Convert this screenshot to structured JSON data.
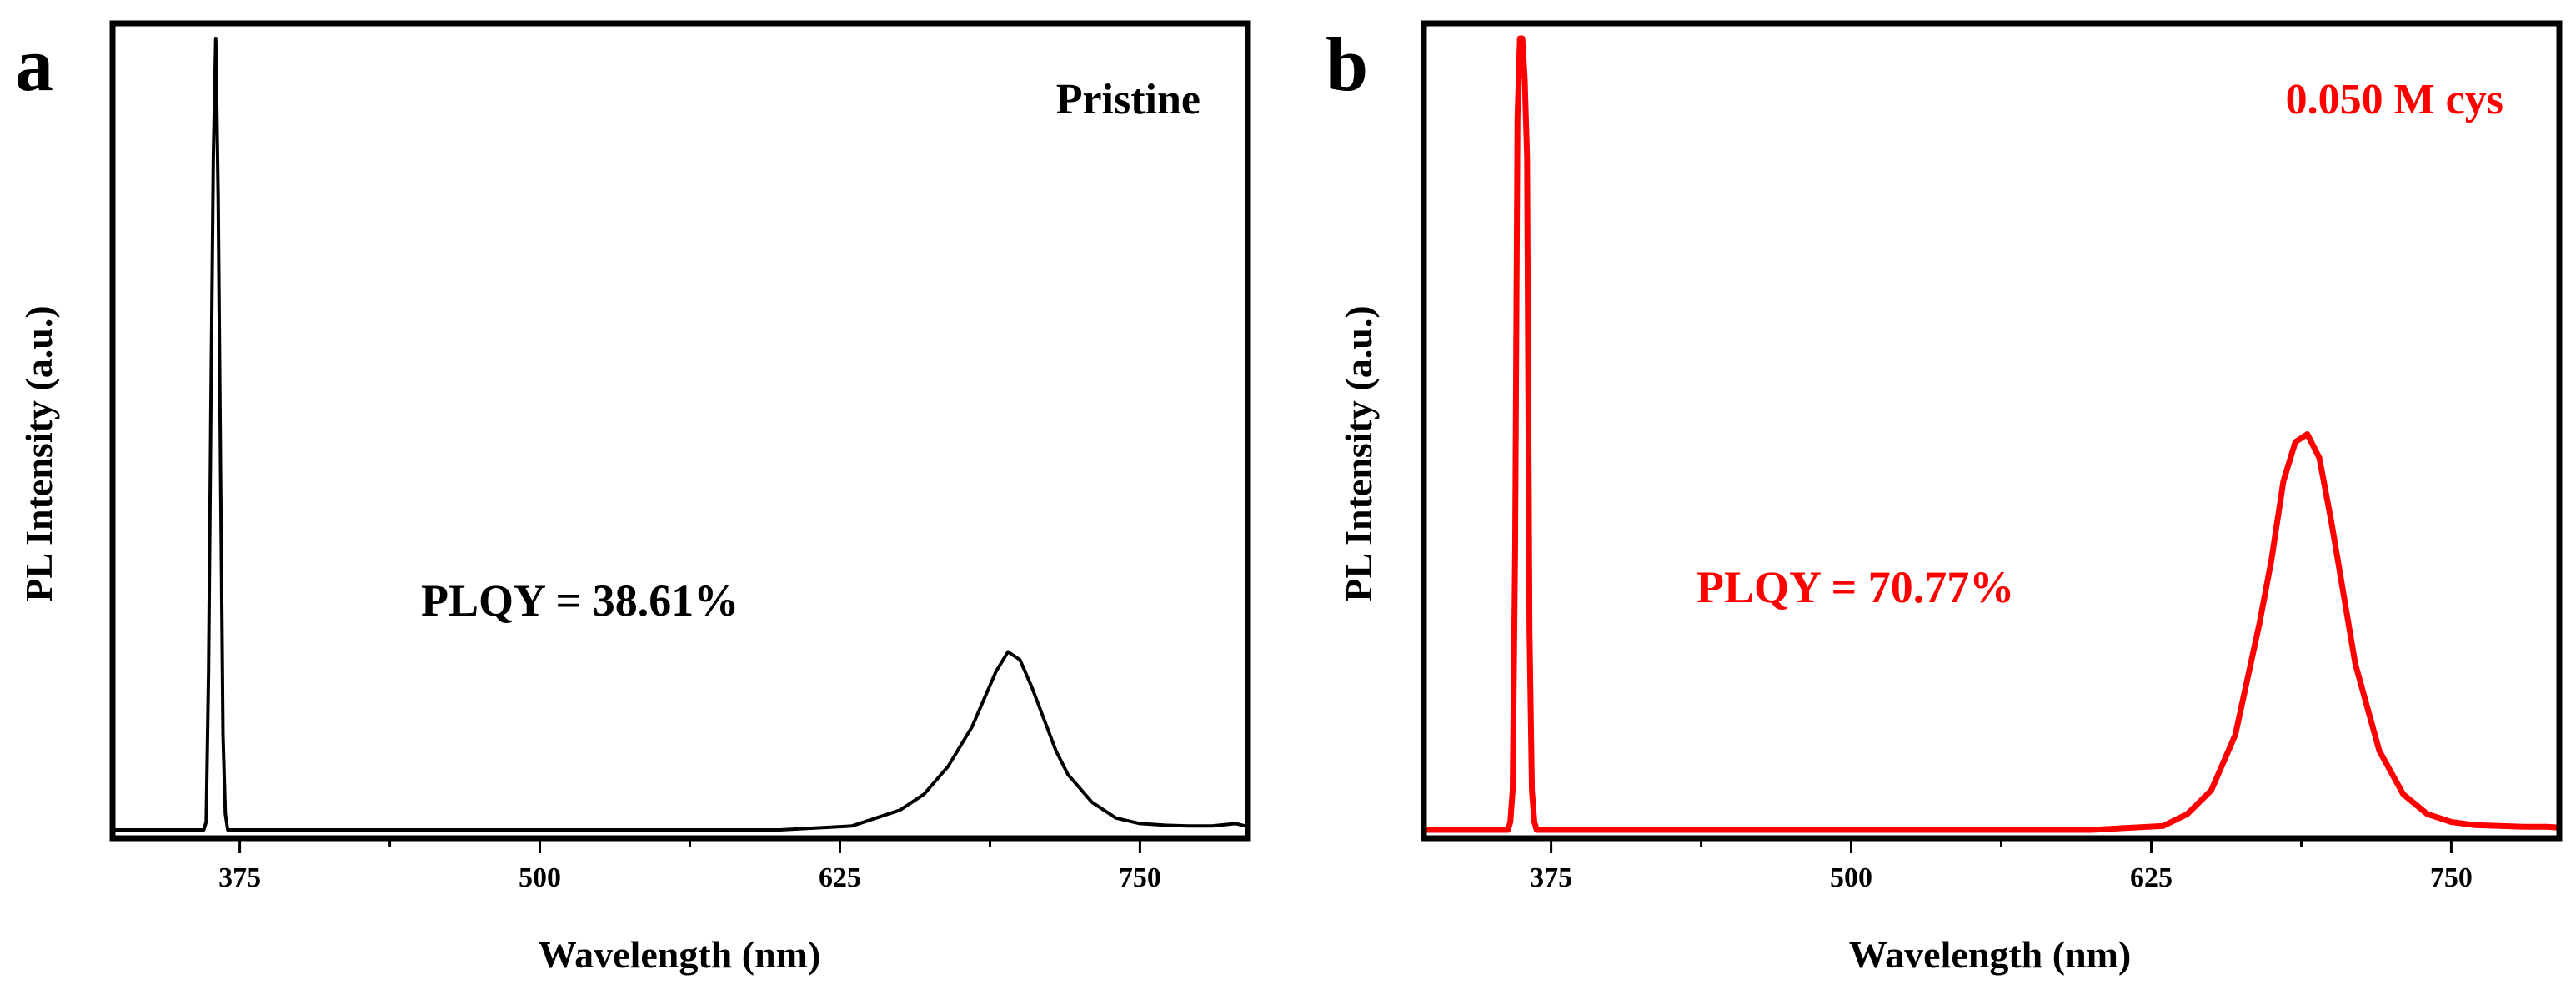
{
  "chart_data": [
    {
      "panel_label": "a",
      "type": "line",
      "title": "",
      "xlabel": "Wavelength (nm)",
      "ylabel": "PL Intensity (a.u.)",
      "xlim": [
        322,
        795
      ],
      "ylim": [
        0,
        1.0
      ],
      "x_ticks": [
        375,
        500,
        625,
        750
      ],
      "x_tick_labels": [
        "375",
        "500",
        "625",
        "750"
      ],
      "y_ticks_shown": false,
      "grid": false,
      "color": "#000000",
      "series": [
        {
          "name": "Pristine",
          "x": [
            322,
            360,
            361,
            362,
            363,
            364,
            365,
            366,
            367,
            368,
            369,
            370,
            500,
            600,
            630,
            640,
            650,
            660,
            670,
            680,
            690,
            695,
            700,
            705,
            710,
            715,
            720,
            730,
            740,
            750,
            760,
            770,
            780,
            790,
            795
          ],
          "y": [
            0,
            0,
            0.01,
            0.2,
            0.55,
            0.85,
            1.0,
            0.8,
            0.45,
            0.12,
            0.02,
            0,
            0,
            0,
            0.005,
            0.015,
            0.025,
            0.045,
            0.08,
            0.13,
            0.2,
            0.225,
            0.215,
            0.18,
            0.14,
            0.1,
            0.07,
            0.035,
            0.015,
            0.008,
            0.006,
            0.005,
            0.005,
            0.008,
            0.004
          ]
        }
      ],
      "annotations": [
        {
          "text": "Pristine",
          "color": "#000000"
        },
        {
          "text": "PLQY = 38.61%",
          "color": "#000000"
        }
      ]
    },
    {
      "panel_label": "b",
      "type": "line",
      "title": "",
      "xlabel": "Wavelength (nm)",
      "ylabel": "PL Intensity (a.u.)",
      "xlim": [
        322,
        795
      ],
      "ylim": [
        0,
        1.0
      ],
      "x_ticks": [
        375,
        500,
        625,
        750
      ],
      "x_tick_labels": [
        "375",
        "500",
        "625",
        "750"
      ],
      "y_ticks_shown": false,
      "grid": false,
      "color": "#ff0000",
      "series": [
        {
          "name": "0.050 M cys",
          "x": [
            322,
            357,
            358,
            359,
            360,
            361,
            362,
            363,
            364,
            365,
            366,
            367,
            368,
            369,
            370,
            371,
            500,
            600,
            630,
            640,
            650,
            660,
            670,
            675,
            680,
            685,
            690,
            695,
            700,
            705,
            710,
            720,
            730,
            740,
            750,
            760,
            770,
            780,
            790,
            795
          ],
          "y": [
            0,
            0,
            0.01,
            0.05,
            0.35,
            0.9,
            1.0,
            1.0,
            0.95,
            0.85,
            0.25,
            0.05,
            0.01,
            0,
            0,
            0,
            0,
            0,
            0.005,
            0.02,
            0.05,
            0.12,
            0.26,
            0.34,
            0.44,
            0.49,
            0.5,
            0.47,
            0.39,
            0.3,
            0.21,
            0.1,
            0.045,
            0.02,
            0.01,
            0.006,
            0.005,
            0.004,
            0.004,
            0.003
          ]
        }
      ],
      "annotations": [
        {
          "text": "0.050 M cys",
          "color": "#ff0000"
        },
        {
          "text": "PLQY = 70.77%",
          "color": "#ff0000"
        }
      ]
    }
  ]
}
